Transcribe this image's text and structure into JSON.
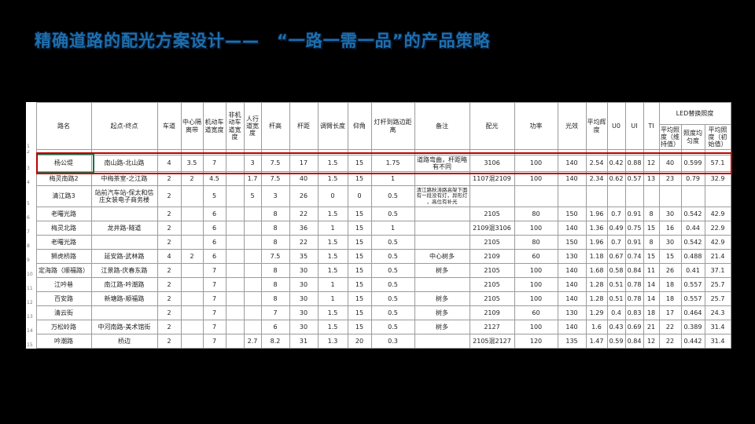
{
  "title": "精确道路的配光方案设计——　“一路一需一品”的产品策略",
  "colors": {
    "title_blue": "#1f6fad",
    "highlight_red": "#c00000",
    "active_cell_green": "#1e7145",
    "slide_background": "#000000"
  },
  "table": {
    "header_row_number": "1",
    "headers": [
      "路名",
      "起点-终点",
      "车道",
      "中心隔离带",
      "机动车道宽度",
      "非机动车道宽度",
      "人行道宽度",
      "杆高",
      "杆距",
      "调臂长度",
      "仰角",
      "灯杆到路边距离",
      "备注",
      "配光",
      "功率",
      "光效",
      "平均辉度",
      "U0",
      "UI",
      "TI"
    ],
    "led_group": {
      "label": "LED替换照度",
      "subs": [
        "平均照度（维持值）",
        "照度均匀度",
        "平均照度（初始值）"
      ]
    },
    "rows": [
      {
        "n": "2",
        "thin": true,
        "cells": [
          "",
          "",
          "",
          "",
          "",
          "",
          "",
          "",
          "",
          "",
          "",
          "",
          "",
          "",
          "",
          "",
          "",
          "",
          "",
          "",
          "",
          "",
          ""
        ]
      },
      {
        "n": "3",
        "highlight": true,
        "cells": [
          "杨公堤",
          "南山路-北山路",
          "4",
          "3.5",
          "7",
          "",
          "3",
          "7.5",
          "17",
          "1.5",
          "15",
          "1.75",
          "道路弯曲，杆距略有不同",
          "3106",
          "100",
          "140",
          "2.54",
          "0.42",
          "0.88",
          "12",
          "40",
          "0.599",
          "57.1"
        ]
      },
      {
        "n": "4",
        "cells": [
          "梅灵南路2",
          "中梅茶室-之江路",
          "2",
          "2",
          "4.5",
          "",
          "1.7",
          "7.5",
          "40",
          "1.5",
          "15",
          "1",
          "",
          "1107混2109",
          "100",
          "140",
          "2.34",
          "0.62",
          "0.57",
          "13",
          "23",
          "0.79",
          "32.9"
        ]
      },
      {
        "n": "5",
        "tall": true,
        "cells": [
          "清江路3",
          "站前汽车站-保太和信庄女装电子商务楼",
          "2",
          "",
          "5",
          "",
          "5",
          "3",
          "26",
          "0",
          "0",
          "0.5",
          "清江路秋涛路高架下面有一段没有灯，异形灯 ，高位有补光",
          "",
          "",
          "",
          "",
          "",
          "",
          "",
          "",
          "",
          ""
        ]
      },
      {
        "n": "6",
        "cells": [
          "老曙光路",
          "",
          "2",
          "",
          "6",
          "",
          "",
          "8",
          "22",
          "1.5",
          "15",
          "0.5",
          "",
          "2105",
          "80",
          "150",
          "1.96",
          "0.7",
          "0.91",
          "8",
          "30",
          "0.542",
          "42.9"
        ]
      },
      {
        "n": "7",
        "cells": [
          "梅灵北路",
          "龙井路-隧道",
          "2",
          "",
          "6",
          "",
          "",
          "8",
          "36",
          "1",
          "15",
          "1",
          "",
          "2109混3106",
          "100",
          "140",
          "1.36",
          "0.49",
          "0.75",
          "15",
          "16",
          "0.44",
          "22.9"
        ]
      },
      {
        "n": "8",
        "cells": [
          "老曙光路",
          "",
          "2",
          "",
          "6",
          "",
          "",
          "8",
          "22",
          "1.5",
          "15",
          "0.5",
          "",
          "2105",
          "80",
          "150",
          "1.96",
          "0.7",
          "0.91",
          "8",
          "30",
          "0.542",
          "42.9"
        ]
      },
      {
        "n": "9",
        "cells": [
          "狮虎桥路",
          "延安路-武林路",
          "4",
          "2",
          "6",
          "",
          "",
          "7.5",
          "35",
          "1.5",
          "15",
          "0.5",
          "中心树多",
          "2109",
          "60",
          "130",
          "1.18",
          "0.67",
          "0.74",
          "15",
          "15",
          "0.488",
          "21.4"
        ]
      },
      {
        "n": "10",
        "cells": [
          "定海路（顺福路）",
          "江景路-庆春东路",
          "2",
          "",
          "7",
          "",
          "",
          "8",
          "30",
          "1.5",
          "15",
          "0.5",
          "树多",
          "2105",
          "100",
          "140",
          "1.68",
          "0.58",
          "0.84",
          "11",
          "26",
          "0.41",
          "37.1"
        ]
      },
      {
        "n": "11",
        "cells": [
          "江吟巷",
          "南江路-吟潮路",
          "2",
          "",
          "7",
          "",
          "",
          "8",
          "30",
          "1",
          "15",
          "0.5",
          "",
          "2105",
          "100",
          "140",
          "1.28",
          "0.51",
          "0.78",
          "14",
          "18",
          "0.557",
          "25.7"
        ]
      },
      {
        "n": "12",
        "cells": [
          "百安路",
          "新塘路-顺福路",
          "2",
          "",
          "7",
          "",
          "",
          "8",
          "30",
          "1",
          "15",
          "0.5",
          "树多",
          "2105",
          "100",
          "140",
          "1.28",
          "0.51",
          "0.78",
          "14",
          "18",
          "0.557",
          "25.7"
        ]
      },
      {
        "n": "13",
        "cells": [
          "清云街",
          "",
          "2",
          "",
          "7",
          "",
          "",
          "7",
          "30",
          "1.5",
          "15",
          "0.5",
          "树多",
          "2109",
          "60",
          "130",
          "1.29",
          "0.4",
          "0.83",
          "18",
          "17",
          "0.464",
          "24.3"
        ]
      },
      {
        "n": "14",
        "cells": [
          "万松岭路",
          "中河南路-美术馆街",
          "2",
          "",
          "7",
          "",
          "",
          "6",
          "30",
          "1.5",
          "15",
          "0.5",
          "树多",
          "2127",
          "100",
          "140",
          "1.6",
          "0.43",
          "0.69",
          "21",
          "22",
          "0.389",
          "31.4"
        ]
      },
      {
        "n": "15",
        "cells": [
          "吟潮路",
          "桥边",
          "2",
          "",
          "7",
          "",
          "2.7",
          "8.2",
          "31",
          "1.3",
          "20",
          "0.3",
          "",
          "2105混2127",
          "120",
          "135",
          "1.47",
          "0.59",
          "0.84",
          "12",
          "22",
          "0.442",
          "31.4"
        ]
      }
    ]
  }
}
